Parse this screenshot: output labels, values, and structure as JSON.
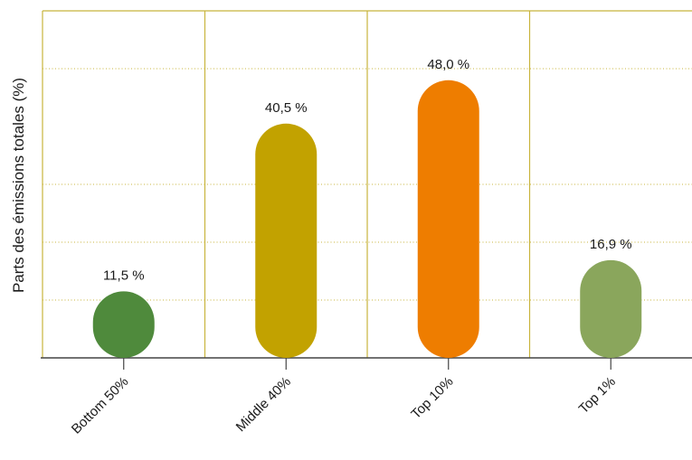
{
  "chart_data": {
    "type": "bar",
    "categories": [
      "Bottom 50%",
      "Middle 40%",
      "Top 10%",
      "Top 1%"
    ],
    "values": [
      11.5,
      40.5,
      48.0,
      16.9
    ],
    "value_labels": [
      "11,5 %",
      "40,5 %",
      "48,0 %",
      "16,9 %"
    ],
    "ylabel": "Parts des émissions totales (%)",
    "ylim": [
      0,
      60
    ],
    "colors": [
      "#4f8a3c",
      "#c2a200",
      "#ee7d00",
      "#8aa65c"
    ],
    "frame_color": "#c8b43c",
    "grid": true,
    "grid_color": "#c8b43c"
  }
}
